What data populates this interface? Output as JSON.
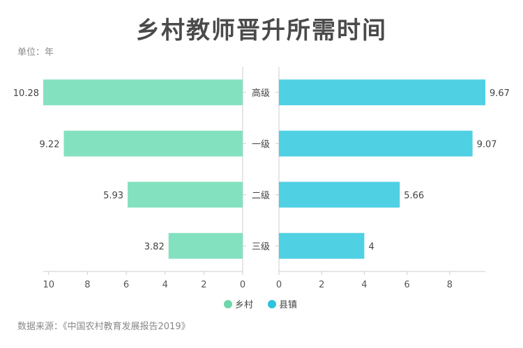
{
  "chart_data": {
    "type": "bar",
    "title": "乡村教师晋升所需时间",
    "unit_label": "单位：年",
    "source": "数据来源：《中国农村教育发展报告2019》",
    "categories": [
      "高级",
      "一级",
      "二级",
      "三级"
    ],
    "series": [
      {
        "name": "乡村",
        "values": [
          10.28,
          9.22,
          5.93,
          3.82
        ],
        "color": "#84e1bf",
        "legend_color": "#6ed6ad"
      },
      {
        "name": "县镇",
        "values": [
          9.67,
          9.07,
          5.66,
          4
        ],
        "color": "#4fd0e3",
        "legend_color": "#2bc3dd"
      }
    ],
    "left_axis": {
      "ticks": [
        10,
        8,
        6,
        4,
        2,
        0
      ],
      "range": [
        0,
        10.28
      ],
      "reversed": true
    },
    "right_axis": {
      "ticks": [
        0,
        2,
        4,
        6,
        8
      ],
      "range": [
        0,
        9.67
      ]
    },
    "legend_position": "bottom",
    "grid": false
  }
}
